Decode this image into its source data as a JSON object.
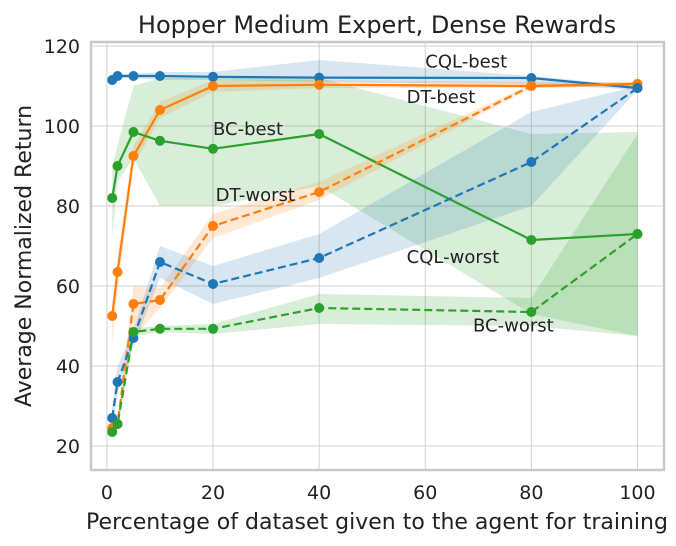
{
  "chart_data": {
    "type": "line",
    "title": "Hopper Medium Expert, Dense Rewards",
    "xlabel": "Percentage of dataset given to the agent for training",
    "ylabel": "Average Normalized Return",
    "xlim": [
      -3,
      105
    ],
    "ylim": [
      14,
      121
    ],
    "xticks": [
      0,
      20,
      40,
      60,
      80,
      100
    ],
    "yticks": [
      20,
      40,
      60,
      80,
      100,
      120
    ],
    "grid": true,
    "series": [
      {
        "name": "CQL-best",
        "color": "#1f77b4",
        "linestyle": "solid",
        "x": [
          1,
          2,
          5,
          10,
          20,
          40,
          80,
          100
        ],
        "y": [
          111.5,
          112.5,
          112.5,
          112.5,
          112.3,
          112.1,
          112.0,
          109.5
        ],
        "band_low": [
          111.0,
          112.0,
          112.0,
          111.5,
          111.5,
          111.0,
          110.5,
          109.0
        ],
        "band_high": [
          112.0,
          113.0,
          113.0,
          113.5,
          113.5,
          116.5,
          112.5,
          110.0
        ]
      },
      {
        "name": "DT-best",
        "color": "#ff7f0e",
        "linestyle": "solid",
        "x": [
          1,
          2,
          5,
          10,
          20,
          40,
          80,
          100
        ],
        "y": [
          52.5,
          63.5,
          92.5,
          104.0,
          110.0,
          110.3,
          110.0,
          110.5
        ],
        "band_low": [
          45.0,
          59.0,
          90.0,
          102.0,
          108.5,
          109.5,
          109.5,
          110.0
        ],
        "band_high": [
          56.0,
          67.0,
          95.0,
          106.0,
          111.5,
          111.5,
          111.0,
          111.0
        ]
      },
      {
        "name": "BC-best",
        "color": "#2ca02c",
        "linestyle": "solid",
        "x": [
          1,
          2,
          5,
          10,
          20,
          40,
          80,
          100
        ],
        "y": [
          82.0,
          90.0,
          98.5,
          96.3,
          94.3,
          98.0,
          71.5,
          73.0
        ],
        "band_low": [
          72.0,
          86.0,
          92.0,
          80.0,
          80.0,
          85.0,
          53.0,
          47.5
        ],
        "band_high": [
          90.0,
          95.0,
          110.0,
          112.0,
          112.0,
          112.0,
          98.0,
          98.5
        ]
      },
      {
        "name": "DT-worst",
        "color": "#ff7f0e",
        "linestyle": "dashed",
        "x": [
          1,
          2,
          5,
          10,
          20,
          40,
          80,
          100
        ],
        "y": [
          24.5,
          25.5,
          55.5,
          56.5,
          75.0,
          83.5,
          110.0,
          110.5
        ],
        "band_low": [
          23.5,
          24.5,
          47.0,
          54.5,
          72.0,
          81.5,
          109.5,
          110.0
        ],
        "band_high": [
          25.5,
          26.5,
          60.0,
          59.5,
          78.0,
          86.0,
          110.5,
          111.0
        ]
      },
      {
        "name": "CQL-worst",
        "color": "#1f77b4",
        "linestyle": "dashed",
        "x": [
          1,
          2,
          5,
          10,
          20,
          40,
          80,
          100
        ],
        "y": [
          27.0,
          36.0,
          47.0,
          66.0,
          60.5,
          67.0,
          91.0,
          109.5
        ],
        "band_low": [
          24.0,
          33.0,
          45.0,
          62.0,
          55.5,
          62.0,
          80.0,
          109.0
        ],
        "band_high": [
          30.0,
          40.0,
          49.0,
          70.0,
          65.0,
          73.0,
          103.5,
          110.0
        ]
      },
      {
        "name": "BC-worst",
        "color": "#2ca02c",
        "linestyle": "dashed",
        "x": [
          1,
          2,
          5,
          10,
          20,
          40,
          80,
          100
        ],
        "y": [
          23.5,
          25.5,
          48.5,
          49.3,
          49.3,
          54.5,
          53.5,
          73.0
        ],
        "band_low": [
          23.0,
          25.0,
          47.5,
          48.5,
          48.0,
          50.5,
          50.0,
          47.5
        ],
        "band_high": [
          24.0,
          26.0,
          49.5,
          50.0,
          50.5,
          58.0,
          57.0,
          98.0
        ]
      }
    ],
    "annotations": [
      {
        "text": "CQL-best",
        "x": 60,
        "y": 114.6
      },
      {
        "text": "DT-best",
        "x": 56.5,
        "y": 105.7
      },
      {
        "text": "BC-best",
        "x": 20,
        "y": 97.8
      },
      {
        "text": "DT-worst",
        "x": 20.5,
        "y": 81.3
      },
      {
        "text": "CQL-worst",
        "x": 56.5,
        "y": 65.8
      },
      {
        "text": "BC-worst",
        "x": 69,
        "y": 48.6
      }
    ]
  }
}
